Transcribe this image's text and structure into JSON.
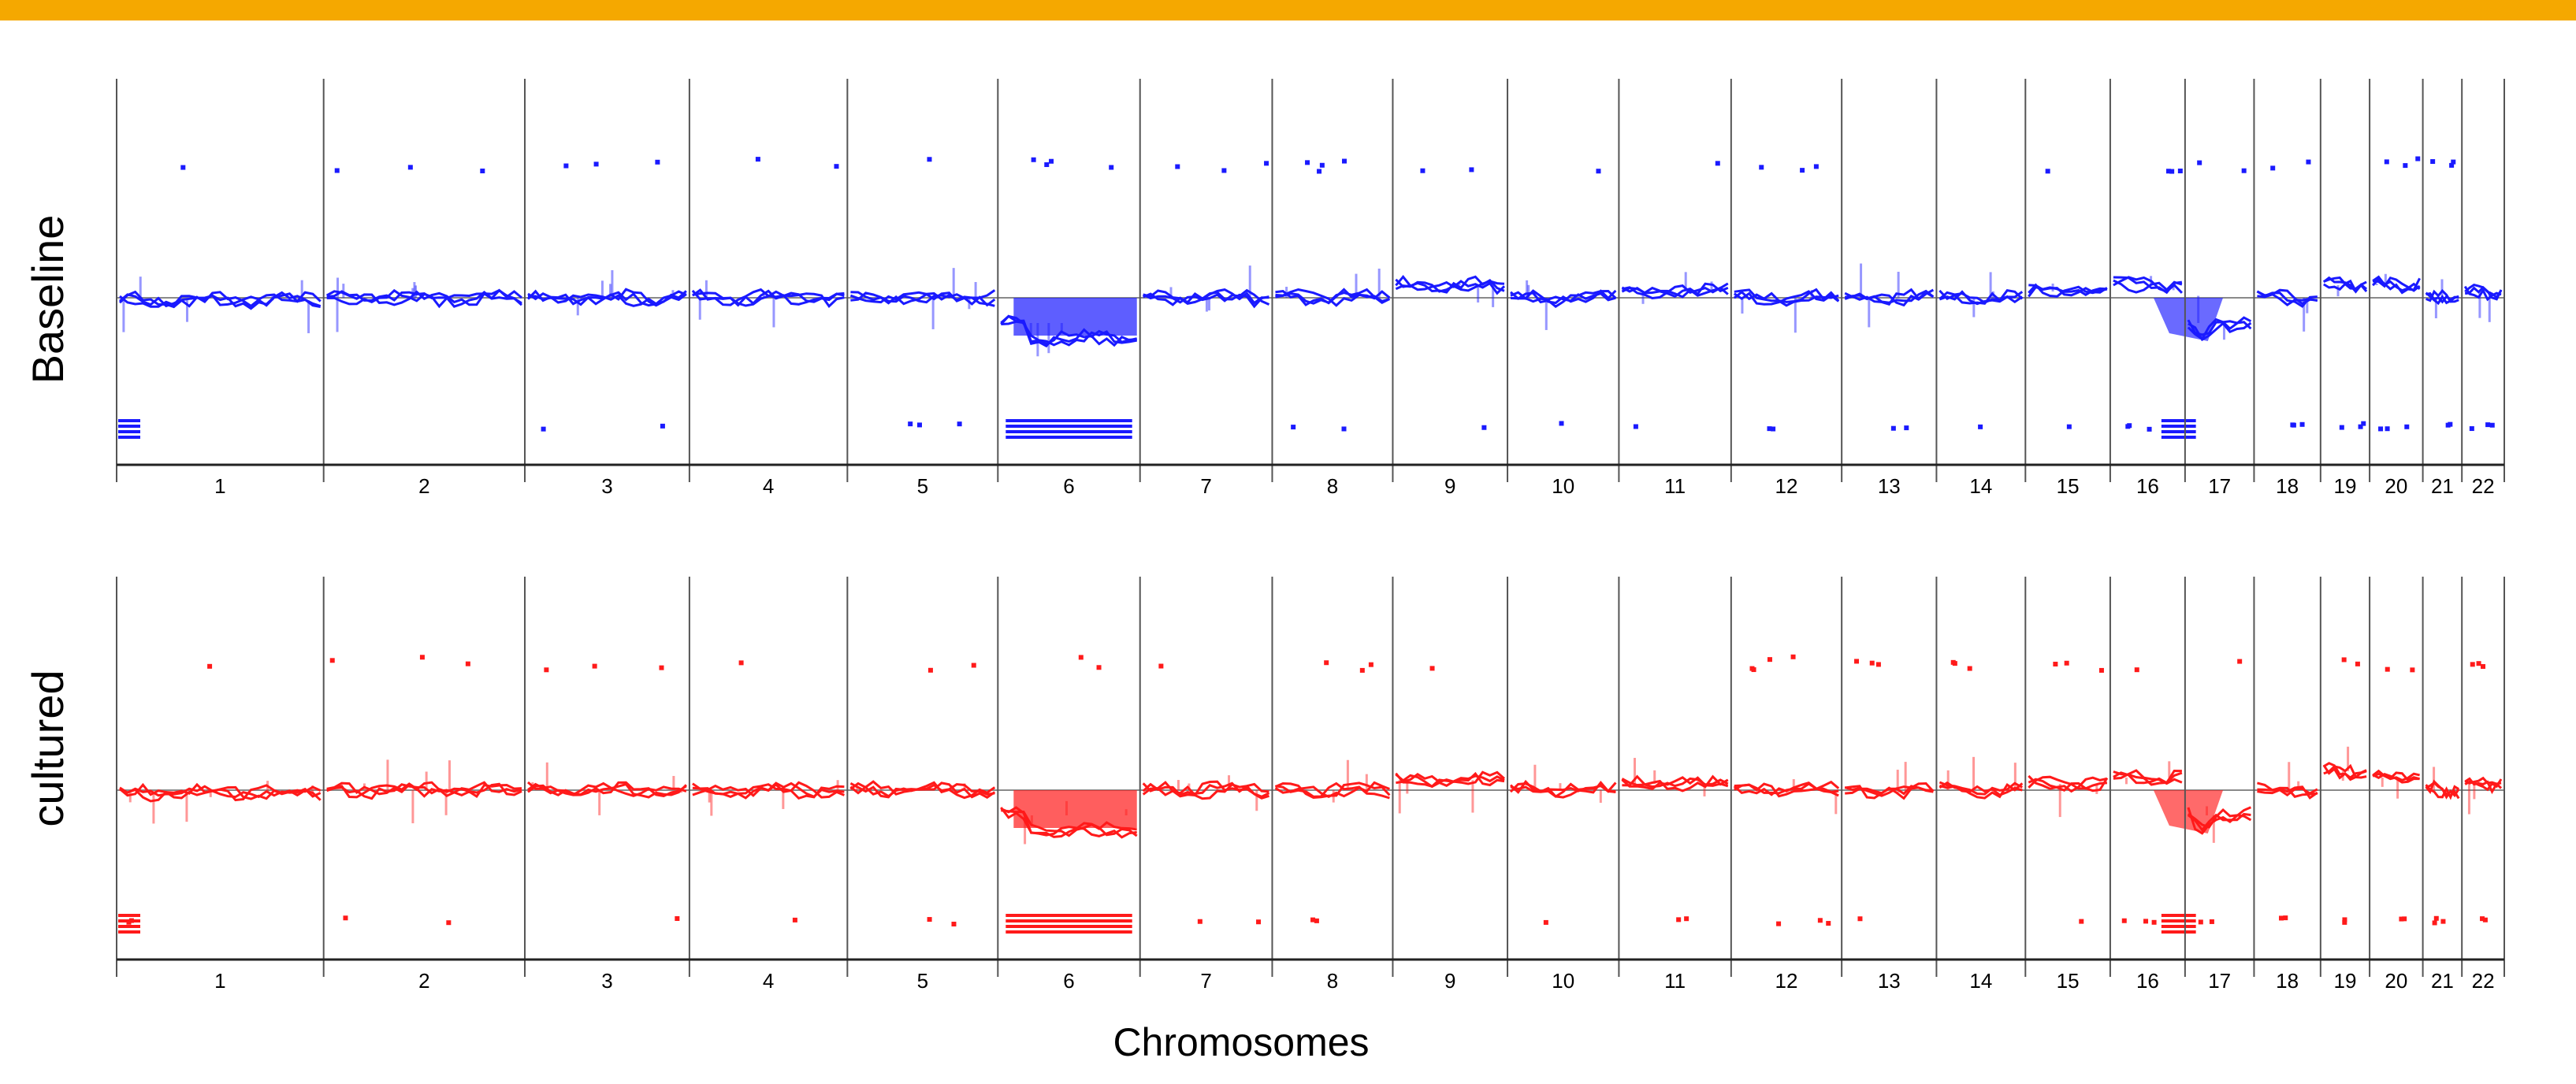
{
  "colors": {
    "banner": "#F5A800",
    "baseline": "#1a1aff",
    "cultured": "#ff1a1a",
    "grid": "#555555"
  },
  "chart_data": [
    {
      "type": "line",
      "panel": "baseline",
      "ylabel": "Baseline",
      "color": "#1a1aff",
      "chromosomes": [
        "1",
        "2",
        "3",
        "4",
        "5",
        "6",
        "7",
        "8",
        "9",
        "10",
        "11",
        "12",
        "13",
        "14",
        "15",
        "16",
        "17",
        "18",
        "19",
        "20",
        "21",
        "22"
      ],
      "chrom_sizes_mb": [
        249,
        242,
        198,
        190,
        181,
        171,
        159,
        145,
        138,
        134,
        135,
        133,
        114,
        107,
        102,
        90,
        83,
        80,
        59,
        64,
        47,
        51
      ],
      "profile_log2_ratio": [
        -0.02,
        0.0,
        0.0,
        0.0,
        0.0,
        -0.2,
        0.0,
        0.0,
        0.1,
        0.0,
        0.05,
        0.0,
        0.0,
        0.0,
        0.05,
        0.1,
        -0.2,
        0.0,
        0.1,
        0.1,
        0.0,
        0.05
      ],
      "deleted_regions": [
        "6",
        "17p"
      ],
      "ylim": [
        -1,
        1
      ]
    },
    {
      "type": "line",
      "panel": "cultured",
      "ylabel": "cultured",
      "color": "#ff1a1a",
      "chromosomes": [
        "1",
        "2",
        "3",
        "4",
        "5",
        "6",
        "7",
        "8",
        "9",
        "10",
        "11",
        "12",
        "13",
        "14",
        "15",
        "16",
        "17",
        "18",
        "19",
        "20",
        "21",
        "22"
      ],
      "chrom_sizes_mb": [
        249,
        242,
        198,
        190,
        181,
        171,
        159,
        145,
        138,
        134,
        135,
        133,
        114,
        107,
        102,
        90,
        83,
        80,
        59,
        64,
        47,
        51
      ],
      "profile_log2_ratio": [
        -0.02,
        0.0,
        0.0,
        0.0,
        0.0,
        -0.2,
        0.0,
        0.0,
        0.08,
        0.0,
        0.05,
        0.0,
        0.0,
        0.0,
        0.05,
        0.1,
        -0.2,
        0.0,
        0.15,
        0.1,
        0.0,
        0.05
      ],
      "deleted_regions": [
        "6",
        "17p"
      ],
      "ylim": [
        -1,
        1
      ]
    }
  ],
  "xlabel": "Chromosomes"
}
